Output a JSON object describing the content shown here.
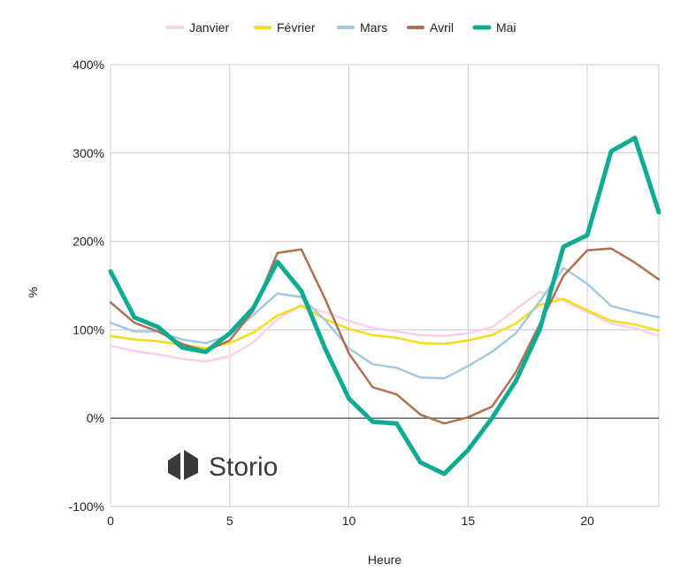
{
  "chart_data": {
    "type": "line",
    "xlabel": "Heure",
    "ylabel": "%",
    "xlim": [
      0,
      23
    ],
    "ylim": [
      -100,
      400
    ],
    "xticks": [
      0,
      5,
      10,
      15,
      20
    ],
    "xtick_labels": [
      "0",
      "5",
      "10",
      "15",
      "20"
    ],
    "yticks": [
      -100,
      0,
      100,
      200,
      300,
      400
    ],
    "ytick_labels": [
      "-100%",
      "0%",
      "100%",
      "200%",
      "300%",
      "400%"
    ],
    "grid": true,
    "legend_position": "top",
    "x": [
      0,
      1,
      2,
      3,
      4,
      5,
      6,
      7,
      8,
      9,
      10,
      11,
      12,
      13,
      14,
      15,
      16,
      17,
      18,
      19,
      20,
      21,
      22,
      23
    ],
    "series": [
      {
        "name": "Janvier",
        "color": "#f8d0ea",
        "width": 2.5,
        "values": [
          82,
          76,
          72,
          67,
          64,
          70,
          86,
          112,
          128,
          120,
          110,
          102,
          98,
          94,
          93,
          96,
          103,
          123,
          143,
          133,
          120,
          107,
          102,
          93
        ]
      },
      {
        "name": "Février",
        "color": "#f2dc1b",
        "width": 2.5,
        "values": [
          93,
          89,
          87,
          83,
          79,
          85,
          97,
          116,
          127,
          112,
          101,
          94,
          91,
          85,
          84,
          88,
          94,
          107,
          128,
          135,
          122,
          110,
          106,
          99
        ]
      },
      {
        "name": "Mars",
        "color": "#a4c8e4",
        "width": 2.5,
        "values": [
          108,
          98,
          98,
          89,
          85,
          94,
          117,
          141,
          137,
          111,
          79,
          61,
          57,
          46,
          45,
          59,
          75,
          96,
          132,
          170,
          152,
          127,
          120,
          114
        ]
      },
      {
        "name": "Avril",
        "color": "#b06e55",
        "width": 2.5,
        "values": [
          131,
          108,
          98,
          84,
          76,
          88,
          122,
          187,
          191,
          135,
          73,
          35,
          27,
          4,
          -6,
          1,
          13,
          52,
          106,
          161,
          190,
          192,
          176,
          157
        ]
      },
      {
        "name": "Mai",
        "color": "#0dac92",
        "width": 5,
        "values": [
          166,
          114,
          103,
          80,
          75,
          96,
          125,
          177,
          144,
          79,
          22,
          -4,
          -6,
          -50,
          -63,
          -36,
          0,
          42,
          100,
          194,
          207,
          302,
          317,
          233
        ]
      }
    ]
  },
  "logo": {
    "text": "Storio"
  }
}
